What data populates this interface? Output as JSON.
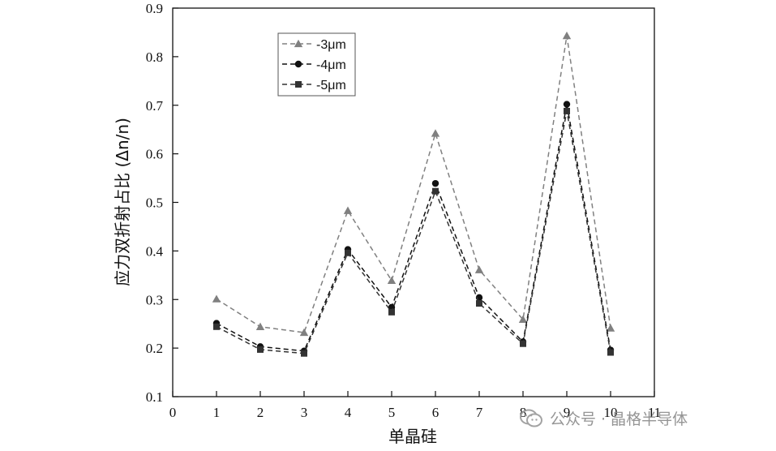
{
  "chart_data": {
    "type": "line",
    "xlabel": "单晶硅",
    "ylabel": "应力双折射占比 (Δn/n)",
    "xlim": [
      0,
      11
    ],
    "ylim": [
      0.1,
      0.9
    ],
    "xticks": [
      0,
      1,
      2,
      3,
      4,
      5,
      6,
      7,
      8,
      9,
      10,
      11
    ],
    "yticks": [
      0.1,
      0.2,
      0.3,
      0.4,
      0.5,
      0.6,
      0.7,
      0.8,
      0.9
    ],
    "x": [
      1,
      2,
      3,
      4,
      5,
      6,
      7,
      8,
      9,
      10
    ],
    "legend_position": "upper-left",
    "grid": false,
    "series": [
      {
        "name": "-3μm",
        "marker": "triangle",
        "color": "#808080",
        "values": [
          0.301,
          0.244,
          0.232,
          0.483,
          0.339,
          0.642,
          0.361,
          0.259,
          0.843,
          0.241
        ]
      },
      {
        "name": "-4μm",
        "marker": "circle",
        "color": "#111111",
        "values": [
          0.251,
          0.203,
          0.194,
          0.403,
          0.284,
          0.539,
          0.304,
          0.213,
          0.702,
          0.196
        ]
      },
      {
        "name": "-5μm",
        "marker": "square",
        "color": "#333333",
        "values": [
          0.244,
          0.197,
          0.189,
          0.396,
          0.274,
          0.523,
          0.292,
          0.209,
          0.688,
          0.191
        ]
      }
    ]
  },
  "watermark": {
    "text": "公众号 · 晶格半导体",
    "icon": "wechat-icon"
  }
}
